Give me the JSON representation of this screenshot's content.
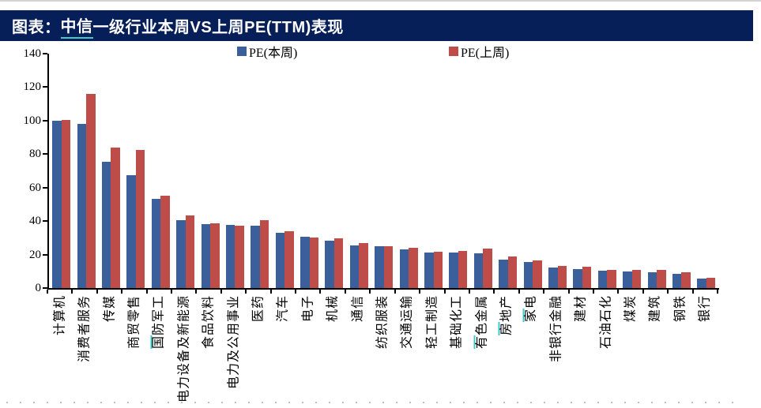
{
  "header": {
    "title_prefix": "图表：",
    "title_link": "中信",
    "title_rest": "一级行业本周VS上周PE(TTM)表现"
  },
  "colors": {
    "title_bar_bg": "#071f58",
    "title_text": "#ffffff",
    "link_underline": "#3fc8ce",
    "series_this_week": "#3a5f9b",
    "series_last_week": "#be4c48",
    "axis": "#000000"
  },
  "chart_data": {
    "type": "bar",
    "title": "中信一级行业本周VS上周PE(TTM)表现",
    "xlabel": "",
    "ylabel": "",
    "ylim": [
      0,
      140
    ],
    "yticks": [
      0,
      20,
      40,
      60,
      80,
      100,
      120,
      140
    ],
    "grid": false,
    "legend_position": "top",
    "categories": [
      "计算机",
      "消费者服务",
      "传媒",
      "商贸零售",
      "国防军工",
      "电力设备及新能源",
      "食品饮料",
      "电力及公用事业",
      "医药",
      "汽车",
      "电子",
      "机械",
      "通信",
      "纺织服装",
      "交通运输",
      "轻工制造",
      "基础化工",
      "有色金属",
      "房地产",
      "家电",
      "非银行金融",
      "建材",
      "石油石化",
      "煤炭",
      "建筑",
      "钢铁",
      "银行"
    ],
    "underlined_categories": [
      "国防军工",
      "有色金属",
      "房地产",
      "家电"
    ],
    "series": [
      {
        "name": "PE(本周)",
        "color": "#3a5f9b",
        "values": [
          99.8,
          98.3,
          75.4,
          67.3,
          53.5,
          40.4,
          38.1,
          37.5,
          37.4,
          33.1,
          30.6,
          28.5,
          25.5,
          25.0,
          22.9,
          21.1,
          21.2,
          21.0,
          16.9,
          15.5,
          12.2,
          11.4,
          10.6,
          10.1,
          9.5,
          8.7,
          5.6
        ]
      },
      {
        "name": "PE(上周)",
        "color": "#be4c48",
        "values": [
          100.2,
          116.2,
          83.9,
          82.4,
          55.2,
          43.3,
          38.6,
          37.4,
          40.4,
          33.9,
          30.1,
          29.6,
          26.7,
          25.1,
          24.1,
          21.8,
          22.4,
          23.4,
          19.0,
          16.3,
          13.2,
          12.9,
          11.1,
          11.1,
          10.8,
          9.5,
          6.3
        ]
      }
    ]
  }
}
